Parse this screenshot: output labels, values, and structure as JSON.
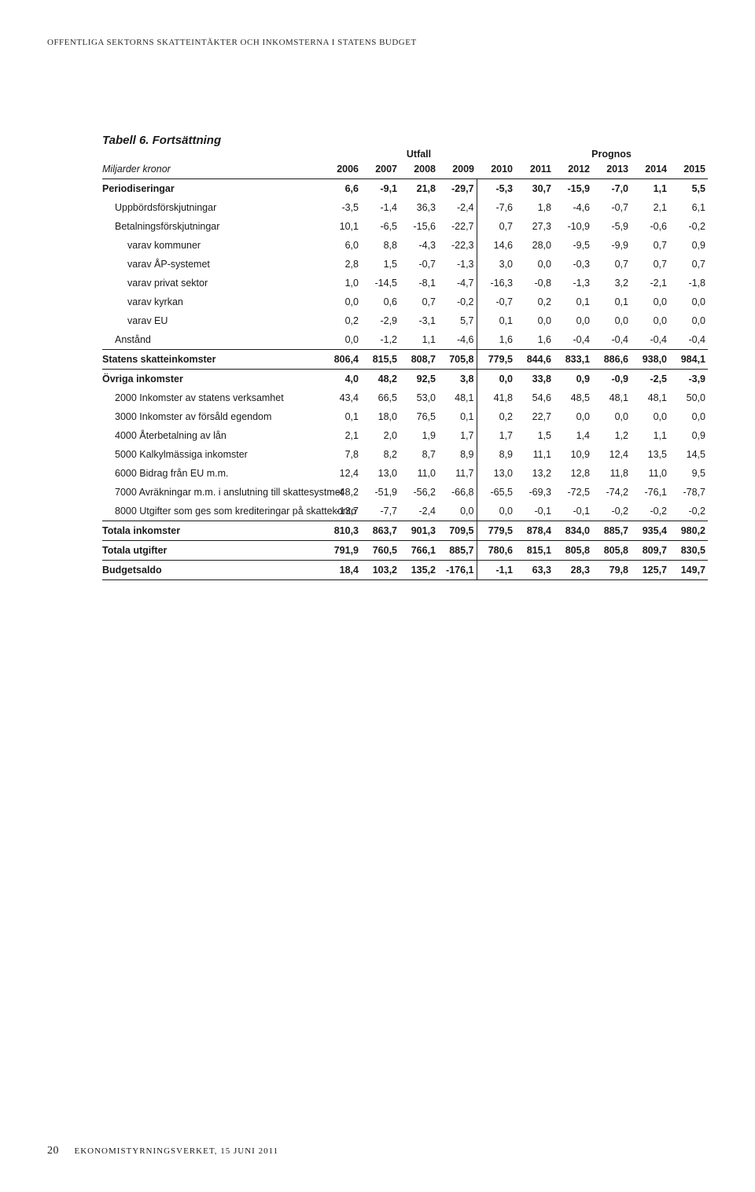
{
  "running_head": "OFFENTLIGA SEKTORNS SKATTEINTÄKTER OCH INKOMSTERNA I STATENS BUDGET",
  "table_title": "Tabell 6. Fortsättning",
  "sub_left": "Miljarder kronor",
  "super_utfall": "Utfall",
  "super_prognos": "Prognos",
  "years": [
    "2006",
    "2007",
    "2008",
    "2009",
    "2010",
    "2011",
    "2012",
    "2013",
    "2014",
    "2015"
  ],
  "colors": {
    "text": "#1a1a1a",
    "bg": "#ffffff",
    "rule": "#1a1a1a"
  },
  "rows": [
    {
      "label": "Periodiseringar",
      "kind": "h",
      "v": [
        "6,6",
        "-9,1",
        "21,8",
        "-29,7",
        "-5,3",
        "30,7",
        "-15,9",
        "-7,0",
        "1,1",
        "5,5"
      ]
    },
    {
      "label": "Uppbördsförskjutningar",
      "indent": 1,
      "v": [
        "-3,5",
        "-1,4",
        "36,3",
        "-2,4",
        "-7,6",
        "1,8",
        "-4,6",
        "-0,7",
        "2,1",
        "6,1"
      ]
    },
    {
      "label": "Betalningsförskjutningar",
      "indent": 1,
      "v": [
        "10,1",
        "-6,5",
        "-15,6",
        "-22,7",
        "0,7",
        "27,3",
        "-10,9",
        "-5,9",
        "-0,6",
        "-0,2"
      ]
    },
    {
      "label": "varav kommuner",
      "indent": 2,
      "v": [
        "6,0",
        "8,8",
        "-4,3",
        "-22,3",
        "14,6",
        "28,0",
        "-9,5",
        "-9,9",
        "0,7",
        "0,9"
      ]
    },
    {
      "label": "varav ÅP-systemet",
      "indent": 2,
      "v": [
        "2,8",
        "1,5",
        "-0,7",
        "-1,3",
        "3,0",
        "0,0",
        "-0,3",
        "0,7",
        "0,7",
        "0,7"
      ]
    },
    {
      "label": "varav privat sektor",
      "indent": 2,
      "v": [
        "1,0",
        "-14,5",
        "-8,1",
        "-4,7",
        "-16,3",
        "-0,8",
        "-1,3",
        "3,2",
        "-2,1",
        "-1,8"
      ]
    },
    {
      "label": "varav kyrkan",
      "indent": 2,
      "v": [
        "0,0",
        "0,6",
        "0,7",
        "-0,2",
        "-0,7",
        "0,2",
        "0,1",
        "0,1",
        "0,0",
        "0,0"
      ]
    },
    {
      "label": "varav EU",
      "indent": 2,
      "v": [
        "0,2",
        "-2,9",
        "-3,1",
        "5,7",
        "0,1",
        "0,0",
        "0,0",
        "0,0",
        "0,0",
        "0,0"
      ]
    },
    {
      "label": "Anstånd",
      "indent": 1,
      "v": [
        "0,0",
        "-1,2",
        "1,1",
        "-4,6",
        "1,6",
        "1,6",
        "-0,4",
        "-0,4",
        "-0,4",
        "-0,4"
      ]
    },
    {
      "label": "Statens skatteinkomster",
      "kind": "b",
      "sep": true,
      "v": [
        "806,4",
        "815,5",
        "808,7",
        "705,8",
        "779,5",
        "844,6",
        "833,1",
        "886,6",
        "938,0",
        "984,1"
      ]
    },
    {
      "label": "Övriga inkomster",
      "kind": "b",
      "sep": true,
      "v": [
        "4,0",
        "48,2",
        "92,5",
        "3,8",
        "0,0",
        "33,8",
        "0,9",
        "-0,9",
        "-2,5",
        "-3,9"
      ]
    },
    {
      "label": "2000  Inkomster av statens verksamhet",
      "indent": 1,
      "v": [
        "43,4",
        "66,5",
        "53,0",
        "48,1",
        "41,8",
        "54,6",
        "48,5",
        "48,1",
        "48,1",
        "50,0"
      ]
    },
    {
      "label": "3000  Inkomster av försåld egendom",
      "indent": 1,
      "v": [
        "0,1",
        "18,0",
        "76,5",
        "0,1",
        "0,2",
        "22,7",
        "0,0",
        "0,0",
        "0,0",
        "0,0"
      ]
    },
    {
      "label": "4000  Återbetalning av lån",
      "indent": 1,
      "v": [
        "2,1",
        "2,0",
        "1,9",
        "1,7",
        "1,7",
        "1,5",
        "1,4",
        "1,2",
        "1,1",
        "0,9"
      ]
    },
    {
      "label": "5000  Kalkylmässiga inkomster",
      "indent": 1,
      "v": [
        "7,8",
        "8,2",
        "8,7",
        "8,9",
        "8,9",
        "11,1",
        "10,9",
        "12,4",
        "13,5",
        "14,5"
      ]
    },
    {
      "label": "6000  Bidrag från EU m.m.",
      "indent": 1,
      "v": [
        "12,4",
        "13,0",
        "11,0",
        "11,7",
        "13,0",
        "13,2",
        "12,8",
        "11,8",
        "11,0",
        "9,5"
      ]
    },
    {
      "label": "7000 Avräkningar m.m. i anslutning till skattesystmet",
      "indent": 1,
      "v": [
        "-48,2",
        "-51,9",
        "-56,2",
        "-66,8",
        "-65,5",
        "-69,3",
        "-72,5",
        "-74,2",
        "-76,1",
        "-78,7"
      ]
    },
    {
      "label": "8000 Utgifter som ges som krediteringar på skattekonto",
      "indent": 1,
      "v": [
        "-13,7",
        "-7,7",
        "-2,4",
        "0,0",
        "0,0",
        "-0,1",
        "-0,1",
        "-0,2",
        "-0,2",
        "-0,2"
      ]
    },
    {
      "label": "Totala inkomster",
      "kind": "b",
      "sep": true,
      "v": [
        "810,3",
        "863,7",
        "901,3",
        "709,5",
        "779,5",
        "878,4",
        "834,0",
        "885,7",
        "935,4",
        "980,2"
      ]
    },
    {
      "label": "Totala utgifter",
      "kind": "b",
      "sep": true,
      "v": [
        "791,9",
        "760,5",
        "766,1",
        "885,7",
        "780,6",
        "815,1",
        "805,8",
        "805,8",
        "809,7",
        "830,5"
      ]
    },
    {
      "label": "Budgetsaldo",
      "kind": "b",
      "sep": true,
      "v": [
        "18,4",
        "103,2",
        "135,2",
        "-176,1",
        "-1,1",
        "63,3",
        "28,3",
        "79,8",
        "125,7",
        "149,7"
      ]
    }
  ],
  "footer": {
    "page": "20",
    "text": "EKONOMISTYRNINGSVERKET, 15 JUNI 2011"
  }
}
